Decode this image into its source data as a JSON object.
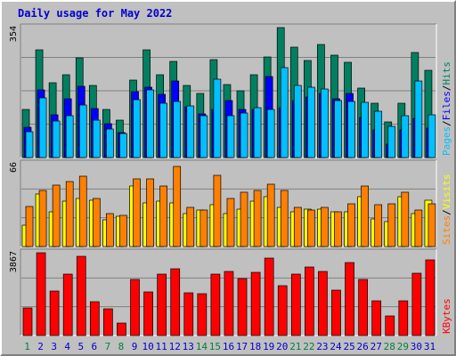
{
  "title": "Daily usage for May 2022",
  "colors": {
    "background": "#c0c0c0",
    "hits": "#008060",
    "files": "#0000ff",
    "pages": "#00c0ff",
    "visits": "#ffff00",
    "sites": "#ff8000",
    "kbytes": "#ff0000",
    "title": "#0000cc",
    "weekend_day": "#008040",
    "weekday_day": "#0000cc"
  },
  "chart_data": [
    {
      "type": "bar",
      "name": "hits-files-pages",
      "ymax": 354,
      "ymax_label": "354",
      "axis_label_parts": [
        "Pages",
        "/",
        "Files",
        "/",
        "Hits"
      ],
      "x": [
        "1",
        "2",
        "3",
        "4",
        "5",
        "6",
        "7",
        "8",
        "9",
        "10",
        "11",
        "12",
        "13",
        "14",
        "15",
        "16",
        "17",
        "18",
        "19",
        "20",
        "21",
        "22",
        "23",
        "24",
        "25",
        "26",
        "27",
        "28",
        "29",
        "30",
        "31"
      ],
      "series": [
        {
          "name": "Hits",
          "values": [
            130,
            294,
            204,
            226,
            272,
            196,
            130,
            101,
            212,
            294,
            225,
            263,
            196,
            175,
            266,
            198,
            183,
            226,
            275,
            355,
            301,
            265,
            309,
            280,
            259,
            189,
            149,
            98,
            148,
            285,
            238
          ]
        },
        {
          "name": "Files",
          "values": [
            82,
            185,
            116,
            160,
            195,
            134,
            93,
            67,
            180,
            192,
            171,
            208,
            139,
            120,
            131,
            156,
            130,
            132,
            221,
            136,
            154,
            165,
            174,
            160,
            175,
            110,
            76,
            37,
            76,
            106,
            79
          ]
        },
        {
          "name": "Pages",
          "values": [
            70,
            163,
            100,
            114,
            142,
            102,
            78,
            65,
            158,
            184,
            147,
            152,
            141,
            114,
            213,
            115,
            122,
            135,
            130,
            245,
            196,
            192,
            187,
            154,
            153,
            151,
            126,
            84,
            115,
            208,
            116
          ]
        }
      ]
    },
    {
      "type": "bar",
      "name": "visits-sites",
      "ymax": 66,
      "ymax_label": "66",
      "axis_label_parts": [
        "Sites",
        "/",
        "Visits"
      ],
      "x": [
        "1",
        "2",
        "3",
        "4",
        "5",
        "6",
        "7",
        "8",
        "9",
        "10",
        "11",
        "12",
        "13",
        "14",
        "15",
        "16",
        "17",
        "18",
        "19",
        "20",
        "21",
        "22",
        "23",
        "24",
        "25",
        "26",
        "27",
        "28",
        "29",
        "30",
        "31"
      ],
      "series": [
        {
          "name": "Visits",
          "values": [
            17,
            42,
            28,
            36,
            38,
            37,
            21,
            24,
            48,
            35,
            36,
            35,
            26,
            29,
            33,
            26,
            30,
            36,
            40,
            31,
            28,
            30,
            30,
            28,
            28,
            40,
            22,
            20,
            40,
            26,
            37
          ]
        },
        {
          "name": "Sites",
          "values": [
            32,
            45,
            49,
            52,
            56,
            38,
            26,
            25,
            54,
            54,
            48,
            64,
            31,
            29,
            57,
            38,
            43,
            45,
            50,
            45,
            31,
            29,
            31,
            28,
            34,
            48,
            33,
            34,
            43,
            29,
            34
          ]
        }
      ]
    },
    {
      "type": "bar",
      "name": "kbytes",
      "ymax": 3867,
      "ymax_label": "3867",
      "axis_label_parts": [
        "KBytes"
      ],
      "x": [
        "1",
        "2",
        "3",
        "4",
        "5",
        "6",
        "7",
        "8",
        "9",
        "10",
        "11",
        "12",
        "13",
        "14",
        "15",
        "16",
        "17",
        "18",
        "19",
        "20",
        "21",
        "22",
        "23",
        "24",
        "25",
        "26",
        "27",
        "28",
        "29",
        "30",
        "31"
      ],
      "series": [
        {
          "name": "KBytes",
          "values": [
            1270,
            3850,
            2080,
            2860,
            3720,
            1580,
            1230,
            570,
            2600,
            2030,
            2850,
            3130,
            2000,
            1960,
            2880,
            2990,
            2680,
            2970,
            3610,
            2320,
            2850,
            3200,
            2990,
            2110,
            3390,
            2620,
            1640,
            930,
            1630,
            2930,
            3520
          ]
        }
      ]
    }
  ],
  "weekend_days": [
    1,
    7,
    8,
    14,
    15,
    21,
    22,
    28,
    29
  ]
}
